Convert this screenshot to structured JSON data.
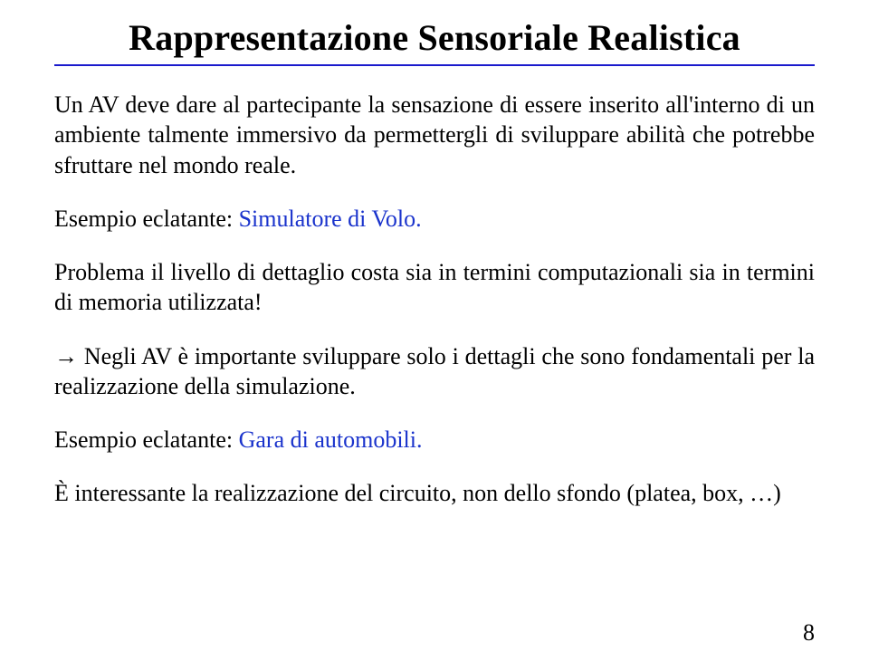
{
  "title": "Rappresentazione Sensoriale Realistica",
  "rule_color": "#1a1acc",
  "blue_color": "#1a33cc",
  "p1": "Un AV deve dare al partecipante la sensazione di essere inserito all'interno di un ambiente talmente immersivo da permettergli di sviluppare abilità che potrebbe sfruttare nel mondo reale.",
  "p2_prefix": "Esempio eclatante: ",
  "p2_blue": "Simulatore di Volo.",
  "p3": "Problema il livello di dettaglio costa sia in termini computazionali sia in termini di memoria utilizzata!",
  "p4_arrow": "→",
  "p4_text": " Negli AV è importante sviluppare solo i dettagli che sono fondamentali per la realizzazione della simulazione.",
  "p5_prefix": "Esempio eclatante: ",
  "p5_blue": "Gara di automobili.",
  "p6": "È interessante la realizzazione del circuito, non dello sfondo (platea, box, …)",
  "page_number": "8"
}
